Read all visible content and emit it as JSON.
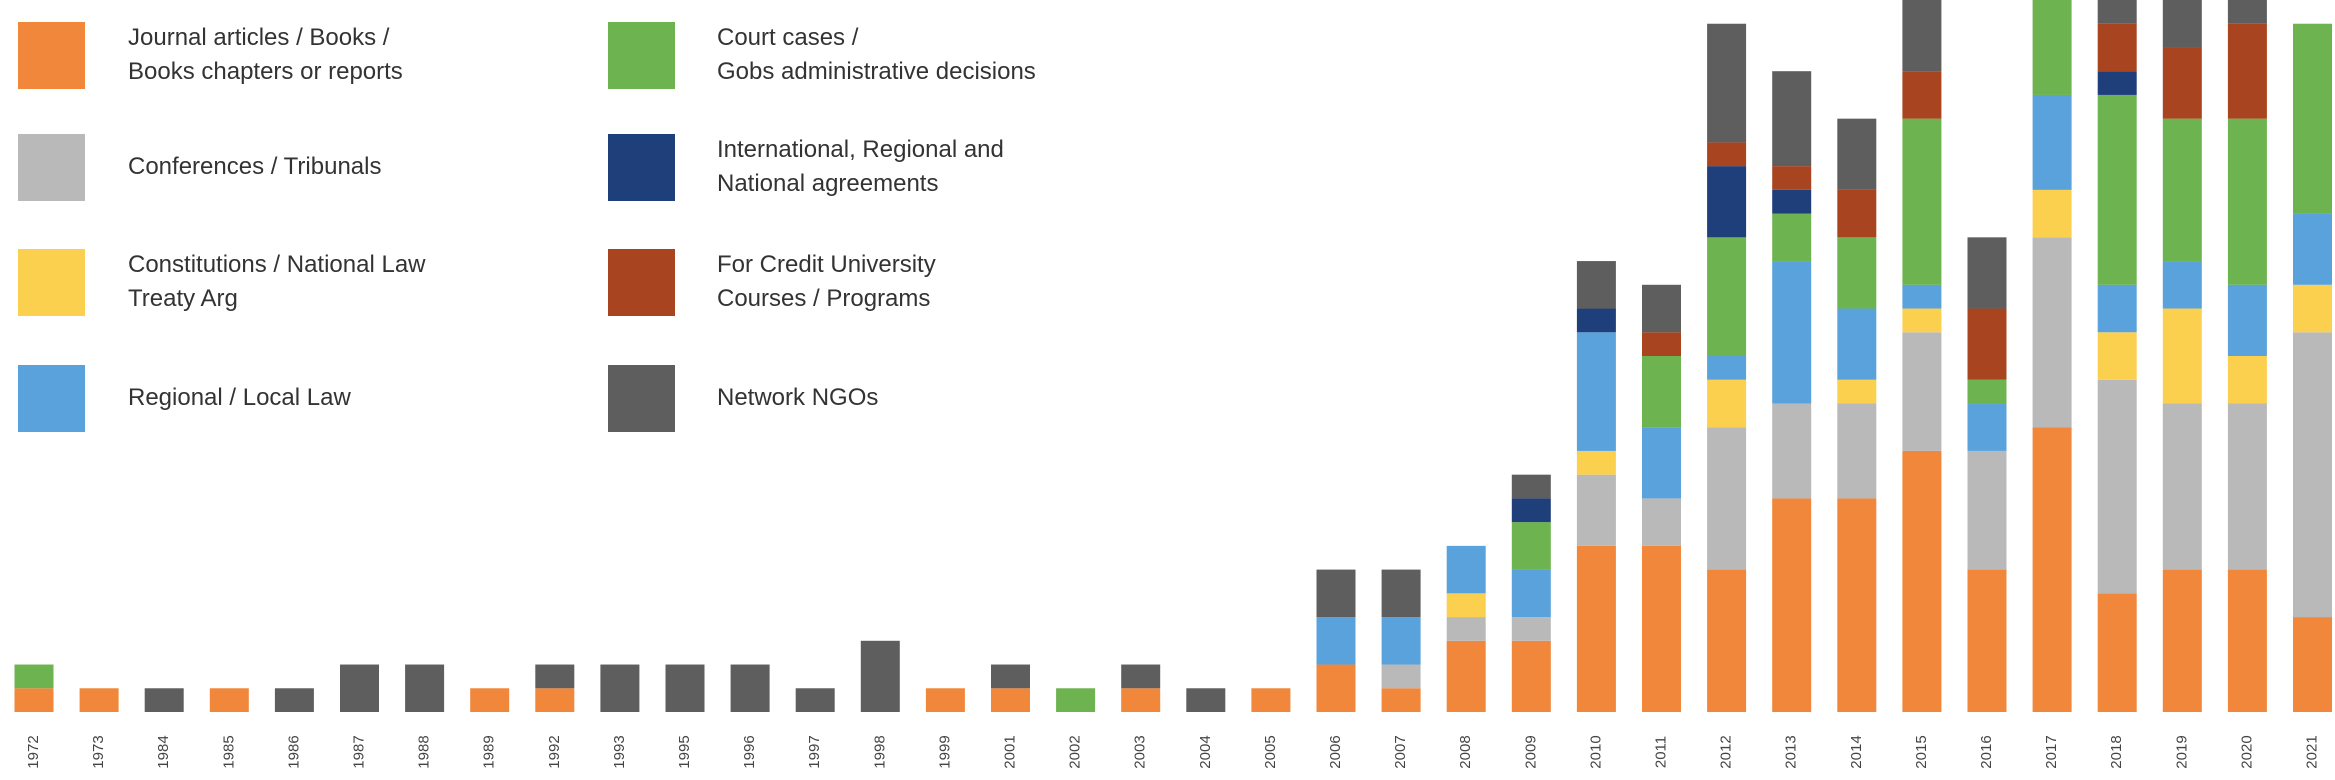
{
  "chart_data": {
    "type": "stacked_bar",
    "categories": [
      "1972",
      "1973",
      "1984",
      "1985",
      "1986",
      "1987",
      "1988",
      "1989",
      "1992",
      "1993",
      "1995",
      "1996",
      "1997",
      "1998",
      "1999",
      "2001",
      "2002",
      "2003",
      "2004",
      "2005",
      "2006",
      "2007",
      "2008",
      "2009",
      "2010",
      "2011",
      "2012",
      "2013",
      "2014",
      "2015",
      "2016",
      "2017",
      "2018",
      "2019",
      "2020",
      "2021"
    ],
    "ylim": [
      0,
      30
    ],
    "series": [
      {
        "name": "Journal articles / Books /\nBooks chapters or reports",
        "color": "#f0873a",
        "values": [
          1,
          1,
          0,
          1,
          0,
          0,
          0,
          1,
          1,
          0,
          0,
          0,
          0,
          0,
          1,
          1,
          0,
          1,
          0,
          1,
          2,
          1,
          3,
          3,
          7,
          7,
          6,
          9,
          9,
          11,
          6,
          12,
          5,
          6,
          6,
          4
        ]
      },
      {
        "name": "Conferences / Tribunals",
        "color": "#b9b9b9",
        "values": [
          0,
          0,
          0,
          0,
          0,
          0,
          0,
          0,
          0,
          0,
          0,
          0,
          0,
          0,
          0,
          0,
          0,
          0,
          0,
          0,
          0,
          1,
          1,
          1,
          3,
          2,
          6,
          4,
          4,
          5,
          5,
          8,
          9,
          7,
          7,
          12
        ]
      },
      {
        "name": "Constitutions / National Law\nTreaty Arg",
        "color": "#fcd04f",
        "values": [
          0,
          0,
          0,
          0,
          0,
          0,
          0,
          0,
          0,
          0,
          0,
          0,
          0,
          0,
          0,
          0,
          0,
          0,
          0,
          0,
          0,
          0,
          1,
          0,
          1,
          0,
          2,
          0,
          1,
          1,
          0,
          2,
          2,
          4,
          2,
          2
        ]
      },
      {
        "name": "Regional / Local Law",
        "color": "#5aa2dc",
        "values": [
          0,
          0,
          0,
          0,
          0,
          0,
          0,
          0,
          0,
          0,
          0,
          0,
          0,
          0,
          0,
          0,
          0,
          0,
          0,
          0,
          2,
          2,
          2,
          2,
          5,
          3,
          1,
          6,
          3,
          1,
          2,
          4,
          2,
          2,
          3,
          3
        ]
      },
      {
        "name": "Court cases /\nGobs administrative decisions",
        "color": "#6db34f",
        "values": [
          1,
          0,
          0,
          0,
          0,
          0,
          0,
          0,
          0,
          0,
          0,
          0,
          0,
          0,
          0,
          0,
          1,
          0,
          0,
          0,
          0,
          0,
          0,
          2,
          0,
          3,
          5,
          2,
          3,
          7,
          1,
          4,
          8,
          6,
          7,
          8
        ]
      },
      {
        "name": "International, Regional and\nNational agreements",
        "color": "#1f3f7a",
        "values": [
          0,
          0,
          0,
          0,
          0,
          0,
          0,
          0,
          0,
          0,
          0,
          0,
          0,
          0,
          0,
          0,
          0,
          0,
          0,
          0,
          0,
          0,
          0,
          1,
          1,
          0,
          3,
          1,
          0,
          0,
          0,
          0,
          1,
          0,
          0,
          0
        ]
      },
      {
        "name": "For Credit University\nCourses / Programs",
        "color": "#a8441f",
        "values": [
          0,
          0,
          0,
          0,
          0,
          0,
          0,
          0,
          0,
          0,
          0,
          0,
          0,
          0,
          0,
          0,
          0,
          0,
          0,
          0,
          0,
          0,
          0,
          0,
          0,
          1,
          1,
          1,
          2,
          2,
          3,
          0,
          2,
          3,
          4,
          0
        ]
      },
      {
        "name": "Network NGOs",
        "color": "#5e5e5e",
        "values": [
          0,
          0,
          1,
          0,
          1,
          2,
          2,
          0,
          1,
          2,
          2,
          2,
          1,
          3,
          0,
          1,
          0,
          1,
          1,
          0,
          2,
          2,
          0,
          1,
          2,
          2,
          5,
          4,
          3,
          3,
          3,
          0,
          1,
          2,
          1,
          0
        ]
      }
    ]
  }
}
